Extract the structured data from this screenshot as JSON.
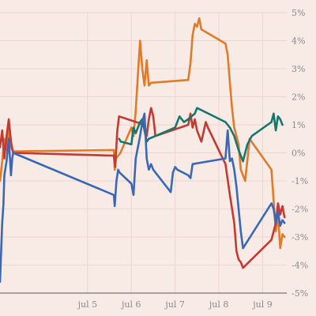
{
  "chart_data": {
    "type": "line",
    "title": "",
    "xlabel": "",
    "ylabel": "",
    "x_ticks": [
      {
        "x": 5.0,
        "label": "jul 5"
      },
      {
        "x": 6.0,
        "label": "jul 6"
      },
      {
        "x": 7.0,
        "label": "jul 7"
      },
      {
        "x": 8.0,
        "label": "jul 8"
      },
      {
        "x": 9.0,
        "label": "jul 9"
      }
    ],
    "xlim": [
      3.0,
      9.55
    ],
    "ylim": [
      -5,
      5
    ],
    "y_ticks": [
      -5,
      -4,
      -3,
      -2,
      -1,
      0,
      1,
      2,
      3,
      4,
      5
    ],
    "y_tick_format": "percent",
    "y_axis_position": "right",
    "grid": true,
    "legend": "none",
    "series": [
      {
        "color": "#e07b2a",
        "points": [
          [
            3.0,
            -1.0
          ],
          [
            3.05,
            -0.3
          ],
          [
            3.1,
            0.5
          ],
          [
            3.15,
            0.1
          ],
          [
            3.2,
            0.9
          ],
          [
            3.25,
            0.2
          ],
          [
            3.3,
            0.05
          ],
          [
            5.6,
            0.1
          ],
          [
            5.62,
            -0.6
          ],
          [
            5.65,
            -0.2
          ],
          [
            5.75,
            0.0
          ],
          [
            6.0,
            0.9
          ],
          [
            6.05,
            0.6
          ],
          [
            6.1,
            1.5
          ],
          [
            6.15,
            2.8
          ],
          [
            6.2,
            4.0
          ],
          [
            6.25,
            3.0
          ],
          [
            6.3,
            2.4
          ],
          [
            6.35,
            3.3
          ],
          [
            6.4,
            2.4
          ],
          [
            6.45,
            2.5
          ],
          [
            7.3,
            2.6
          ],
          [
            7.35,
            3.2
          ],
          [
            7.4,
            4.2
          ],
          [
            7.45,
            4.6
          ],
          [
            7.5,
            4.5
          ],
          [
            7.55,
            4.8
          ],
          [
            7.6,
            4.4
          ],
          [
            8.15,
            3.9
          ],
          [
            8.2,
            3.5
          ],
          [
            8.25,
            2.5
          ],
          [
            8.3,
            1.6
          ],
          [
            8.35,
            0.9
          ],
          [
            8.45,
            0.3
          ],
          [
            8.5,
            -0.6
          ],
          [
            8.6,
            -1.0
          ],
          [
            8.7,
            0.5
          ],
          [
            9.2,
            -0.6
          ],
          [
            9.3,
            -2.8
          ],
          [
            9.35,
            -2.2
          ],
          [
            9.4,
            -3.4
          ],
          [
            9.45,
            -2.9
          ],
          [
            9.5,
            -3.0
          ]
        ]
      },
      {
        "color": "#c33a32",
        "points": [
          [
            3.0,
            0.2
          ],
          [
            3.05,
            0.8
          ],
          [
            3.1,
            -0.2
          ],
          [
            3.15,
            0.6
          ],
          [
            3.2,
            1.2
          ],
          [
            3.25,
            0.4
          ],
          [
            3.3,
            0.0
          ],
          [
            5.6,
            -0.1
          ],
          [
            5.63,
            -0.5
          ],
          [
            5.68,
            0.8
          ],
          [
            5.72,
            1.3
          ],
          [
            6.3,
            1.0
          ],
          [
            6.35,
            0.6
          ],
          [
            6.4,
            1.2
          ],
          [
            6.45,
            1.6
          ],
          [
            6.5,
            1.3
          ],
          [
            6.55,
            0.6
          ],
          [
            7.3,
            1.0
          ],
          [
            7.35,
            1.4
          ],
          [
            7.4,
            0.9
          ],
          [
            7.45,
            1.2
          ],
          [
            7.5,
            0.8
          ],
          [
            7.6,
            0.4
          ],
          [
            7.7,
            1.1
          ],
          [
            7.75,
            0.9
          ],
          [
            8.15,
            -0.4
          ],
          [
            8.25,
            -1.5
          ],
          [
            8.35,
            -2.5
          ],
          [
            8.4,
            -3.5
          ],
          [
            8.45,
            -3.8
          ],
          [
            8.5,
            -3.9
          ],
          [
            8.55,
            -4.1
          ],
          [
            9.2,
            -3.1
          ],
          [
            9.3,
            -2.5
          ],
          [
            9.35,
            -1.8
          ],
          [
            9.4,
            -2.2
          ],
          [
            9.45,
            -1.9
          ],
          [
            9.5,
            -2.3
          ]
        ]
      },
      {
        "color": "#17766e",
        "points": [
          [
            5.72,
            0.5
          ],
          [
            5.76,
            0.4
          ],
          [
            6.0,
            0.3
          ],
          [
            6.05,
            0.9
          ],
          [
            6.1,
            0.7
          ],
          [
            6.2,
            1.1
          ],
          [
            6.25,
            1.2
          ],
          [
            6.3,
            0.8
          ],
          [
            6.35,
            0.4
          ],
          [
            6.4,
            0.5
          ],
          [
            7.0,
            0.9
          ],
          [
            7.1,
            1.3
          ],
          [
            7.2,
            1.1
          ],
          [
            7.3,
            1.2
          ],
          [
            7.45,
            1.4
          ],
          [
            7.5,
            1.6
          ],
          [
            8.15,
            1.1
          ],
          [
            8.25,
            0.9
          ],
          [
            8.35,
            0.6
          ],
          [
            8.45,
            0.1
          ],
          [
            8.55,
            -0.3
          ],
          [
            8.65,
            0.3
          ],
          [
            8.75,
            0.6
          ],
          [
            9.2,
            1.1
          ],
          [
            9.25,
            1.4
          ],
          [
            9.3,
            0.8
          ],
          [
            9.35,
            1.3
          ],
          [
            9.4,
            1.2
          ],
          [
            9.45,
            1.0
          ]
        ]
      },
      {
        "color": "#3a68b4",
        "points": [
          [
            3.0,
            -4.6
          ],
          [
            3.05,
            -2.5
          ],
          [
            3.08,
            -1.8
          ],
          [
            3.1,
            -0.8
          ],
          [
            3.15,
            -0.3
          ],
          [
            3.2,
            0.5
          ],
          [
            3.25,
            -0.8
          ],
          [
            3.28,
            -0.2
          ],
          [
            3.3,
            0.0
          ],
          [
            5.6,
            -1.5
          ],
          [
            5.62,
            -1.9
          ],
          [
            5.66,
            -1.0
          ],
          [
            5.7,
            -0.6
          ],
          [
            5.73,
            -0.7
          ],
          [
            6.0,
            -1.1
          ],
          [
            6.05,
            -1.5
          ],
          [
            6.1,
            -0.2
          ],
          [
            6.2,
            0.6
          ],
          [
            6.25,
            1.1
          ],
          [
            6.3,
            1.4
          ],
          [
            6.35,
            -0.2
          ],
          [
            6.4,
            -0.6
          ],
          [
            6.45,
            -0.4
          ],
          [
            6.5,
            -0.6
          ],
          [
            6.85,
            -1.3
          ],
          [
            6.9,
            -1.4
          ],
          [
            6.95,
            -0.7
          ],
          [
            7.0,
            -0.5
          ],
          [
            7.05,
            -0.6
          ],
          [
            7.3,
            -0.8
          ],
          [
            7.35,
            -0.9
          ],
          [
            7.4,
            -0.4
          ],
          [
            8.15,
            -0.2
          ],
          [
            8.2,
            0.8
          ],
          [
            8.25,
            -0.3
          ],
          [
            8.3,
            -0.2
          ],
          [
            8.35,
            -0.6
          ],
          [
            8.4,
            -1.2
          ],
          [
            8.5,
            -2.8
          ],
          [
            8.55,
            -3.4
          ],
          [
            9.2,
            -1.8
          ],
          [
            9.25,
            -2.0
          ],
          [
            9.3,
            -2.5
          ],
          [
            9.35,
            -2.1
          ],
          [
            9.4,
            -2.6
          ],
          [
            9.45,
            -2.4
          ],
          [
            9.5,
            -2.5
          ]
        ]
      }
    ]
  }
}
